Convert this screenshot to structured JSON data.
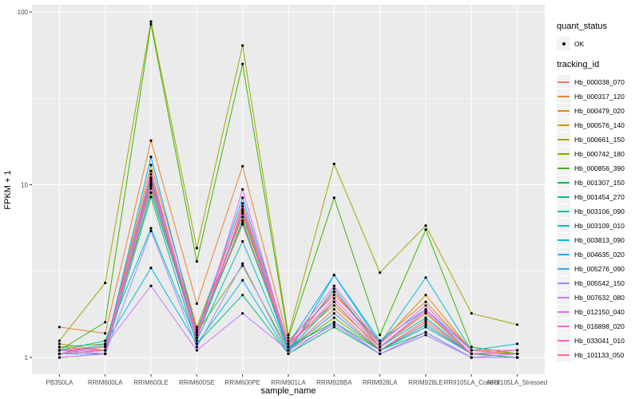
{
  "chart_data": {
    "type": "line",
    "title": "",
    "xlabel": "sample_name",
    "ylabel": "FPKM + 1",
    "y_scale": "log10",
    "y_ticks": [
      1,
      10,
      100
    ],
    "y_minor_ticks": [
      3.162,
      31.62
    ],
    "ylim": [
      0.8,
      110
    ],
    "grid": "on",
    "legend_position": "right",
    "categories": [
      "PB350LA",
      "RRIM600LA",
      "RRIM600LE",
      "RRIM600SE",
      "RRIM600PE",
      "RRIM901LA",
      "RRIM928BA",
      "RRIM928LA",
      "RRIM928LE",
      "RRII105LA_Control",
      "RRII105LA_Stressed"
    ],
    "series": [
      {
        "name": "Hb_000038_070",
        "color": "#F8766D",
        "values": [
          1.1,
          1.05,
          10.5,
          1.3,
          6.8,
          1.1,
          1.9,
          1.1,
          1.6,
          1.05,
          1.05
        ]
      },
      {
        "name": "Hb_000317_120",
        "color": "#EA8331",
        "values": [
          1.5,
          1.38,
          18.0,
          2.05,
          12.8,
          1.25,
          2.3,
          1.25,
          2.1,
          1.1,
          1.05
        ]
      },
      {
        "name": "Hb_000479_020",
        "color": "#D89000",
        "values": [
          1.2,
          1.1,
          13.0,
          1.5,
          7.5,
          1.15,
          2.4,
          1.2,
          2.3,
          1.1,
          1.05
        ]
      },
      {
        "name": "Hb_000576_140",
        "color": "#C09B00",
        "values": [
          1.1,
          1.15,
          11.0,
          1.45,
          6.5,
          1.2,
          2.0,
          1.15,
          1.8,
          1.05,
          1.0
        ]
      },
      {
        "name": "Hb_000661_150",
        "color": "#A3A500",
        "values": [
          1.25,
          2.7,
          88.0,
          4.3,
          64.0,
          1.35,
          13.2,
          3.1,
          5.8,
          1.8,
          1.55
        ]
      },
      {
        "name": "Hb_000742_180",
        "color": "#7CAE00",
        "values": [
          1.15,
          1.2,
          9.5,
          1.4,
          3.4,
          1.1,
          1.7,
          1.1,
          1.5,
          1.05,
          1.0
        ]
      },
      {
        "name": "Hb_000856_390",
        "color": "#39B600",
        "values": [
          1.1,
          1.6,
          85.0,
          3.6,
          50.0,
          1.3,
          8.4,
          1.35,
          5.5,
          1.15,
          1.05
        ]
      },
      {
        "name": "Hb_001307_150",
        "color": "#00BB4E",
        "values": [
          1.05,
          1.1,
          9.0,
          1.35,
          5.9,
          1.15,
          1.6,
          1.1,
          1.4,
          1.0,
          1.0
        ]
      },
      {
        "name": "Hb_001454_270",
        "color": "#00BF7D",
        "values": [
          1.0,
          1.05,
          8.5,
          1.2,
          2.3,
          1.05,
          1.5,
          1.05,
          1.35,
          1.0,
          1.0
        ]
      },
      {
        "name": "Hb_003106_090",
        "color": "#00C1A3",
        "values": [
          1.05,
          1.1,
          10.0,
          1.3,
          6.2,
          1.1,
          2.1,
          1.1,
          1.55,
          1.05,
          1.0
        ]
      },
      {
        "name": "Hb_003109_010",
        "color": "#00BFC4",
        "values": [
          1.1,
          1.25,
          5.6,
          1.25,
          4.7,
          1.1,
          2.5,
          1.15,
          1.7,
          1.05,
          1.05
        ]
      },
      {
        "name": "Hb_003813_090",
        "color": "#00BAE0",
        "values": [
          1.05,
          1.2,
          3.3,
          1.2,
          2.8,
          1.05,
          3.0,
          1.2,
          2.9,
          1.1,
          1.2
        ]
      },
      {
        "name": "Hb_004635_020",
        "color": "#00B0F6",
        "values": [
          1.1,
          1.1,
          14.5,
          1.4,
          8.4,
          1.2,
          3.0,
          1.25,
          1.9,
          1.1,
          1.1
        ]
      },
      {
        "name": "Hb_005276_090",
        "color": "#35A2FF",
        "values": [
          1.05,
          1.05,
          10.8,
          1.3,
          7.0,
          1.1,
          1.8,
          1.1,
          1.5,
          1.05,
          1.05
        ]
      },
      {
        "name": "Hb_005542_150",
        "color": "#9590FF",
        "values": [
          1.1,
          1.05,
          5.4,
          1.15,
          3.5,
          1.05,
          1.6,
          1.05,
          1.4,
          1.0,
          1.05
        ]
      },
      {
        "name": "Hb_007632_080",
        "color": "#C77CFF",
        "values": [
          1.05,
          1.17,
          2.6,
          1.1,
          1.8,
          1.1,
          1.55,
          1.05,
          1.35,
          1.0,
          1.0
        ]
      },
      {
        "name": "Hb_012150_040",
        "color": "#E76BF3",
        "values": [
          1.0,
          1.05,
          9.8,
          1.25,
          9.4,
          1.15,
          2.2,
          1.15,
          1.9,
          1.05,
          1.05
        ]
      },
      {
        "name": "Hb_016898_020",
        "color": "#FA62DB",
        "values": [
          1.1,
          1.1,
          12.0,
          1.35,
          7.8,
          1.2,
          2.6,
          1.2,
          2.0,
          1.1,
          1.1
        ]
      },
      {
        "name": "Hb_033041_010",
        "color": "#FF62BC",
        "values": [
          1.05,
          1.1,
          11.5,
          1.3,
          7.2,
          1.15,
          2.4,
          1.15,
          1.85,
          1.05,
          1.1
        ]
      },
      {
        "name": "Hb_101133_050",
        "color": "#FF6A98",
        "values": [
          1.15,
          1.1,
          10.2,
          1.4,
          6.0,
          1.2,
          2.1,
          1.1,
          1.65,
          1.05,
          1.05
        ]
      }
    ]
  },
  "legend": {
    "quant_status_title": "quant_status",
    "quant_status_value": "OK",
    "tracking_id_title": "tracking_id"
  },
  "style": {
    "panel_bg": "#EBEBEB",
    "grid_color": "#FFFFFF",
    "point_color": "#000000",
    "tick_color": "#333333",
    "tick_label_color": "#4D4D4D",
    "legend_key_bg": "#F2F2F2"
  }
}
